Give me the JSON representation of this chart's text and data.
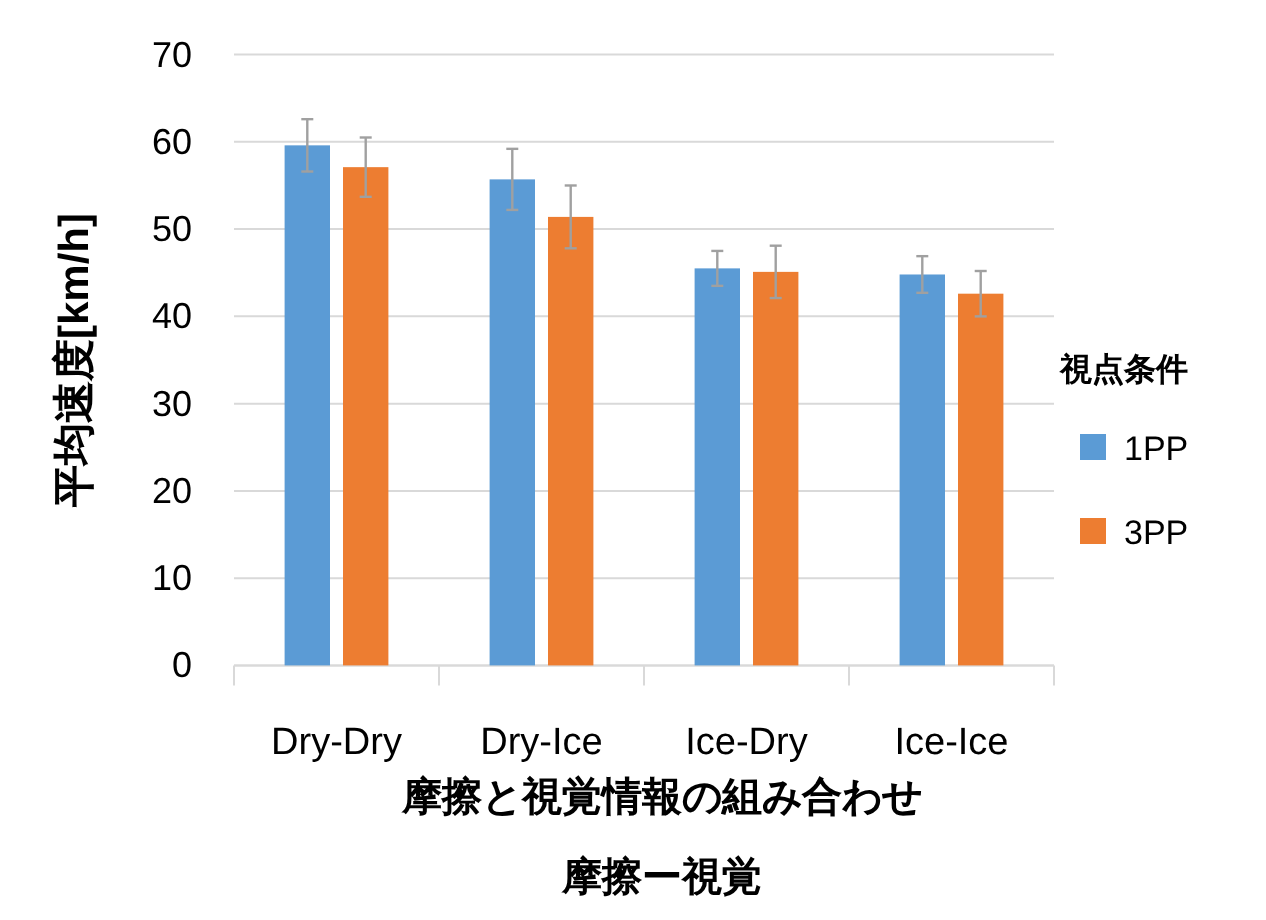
{
  "chart_data": {
    "type": "bar",
    "ylabel": "平均速度[km/h]",
    "xlabel": "摩擦と視覚情報の組み合わせ",
    "legend_title": "視点条件",
    "annotations": [
      "摩擦ー視覚"
    ],
    "categories": [
      "Dry-Dry",
      "Dry-Ice",
      "Ice-Dry",
      "Ice-Ice"
    ],
    "series": [
      {
        "name": "1PP",
        "color": "#5b9bd5",
        "values": [
          59.6,
          55.7,
          45.5,
          44.8
        ],
        "errors": [
          3.0,
          3.5,
          2.0,
          2.1
        ]
      },
      {
        "name": "3PP",
        "color": "#ed7d31",
        "values": [
          57.1,
          51.4,
          45.1,
          42.6
        ],
        "errors": [
          3.4,
          3.6,
          3.0,
          2.6
        ]
      }
    ],
    "ylim": [
      0,
      70
    ],
    "yticks": [
      0,
      10,
      20,
      30,
      40,
      50,
      60,
      70
    ],
    "grid": "y",
    "legend": "right"
  }
}
